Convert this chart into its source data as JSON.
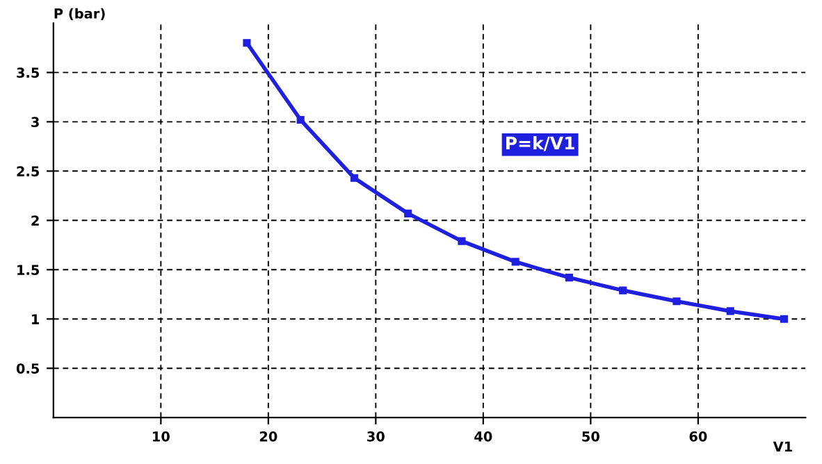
{
  "chart_data": {
    "type": "line",
    "xlabel": "V1",
    "ylabel": "P (bar)",
    "annotations": [
      "P=k/V1"
    ],
    "x": [
      18,
      23,
      28,
      33,
      38,
      43,
      48,
      53,
      58,
      63,
      68
    ],
    "series": [
      {
        "color": "#1f1fe0",
        "values": [
          3.8,
          3.02,
          2.43,
          2.07,
          1.79,
          1.58,
          1.42,
          1.29,
          1.18,
          1.08,
          1.0
        ]
      }
    ],
    "xlim": [
      0,
      70
    ],
    "ylim": [
      0,
      4
    ],
    "xticks": [
      10,
      20,
      30,
      40,
      50,
      60
    ],
    "yticks": [
      0.5,
      1,
      1.5,
      2,
      2.5,
      3,
      3.5
    ],
    "grid": true,
    "marker": "square",
    "line_style": "solid",
    "legend": false
  }
}
